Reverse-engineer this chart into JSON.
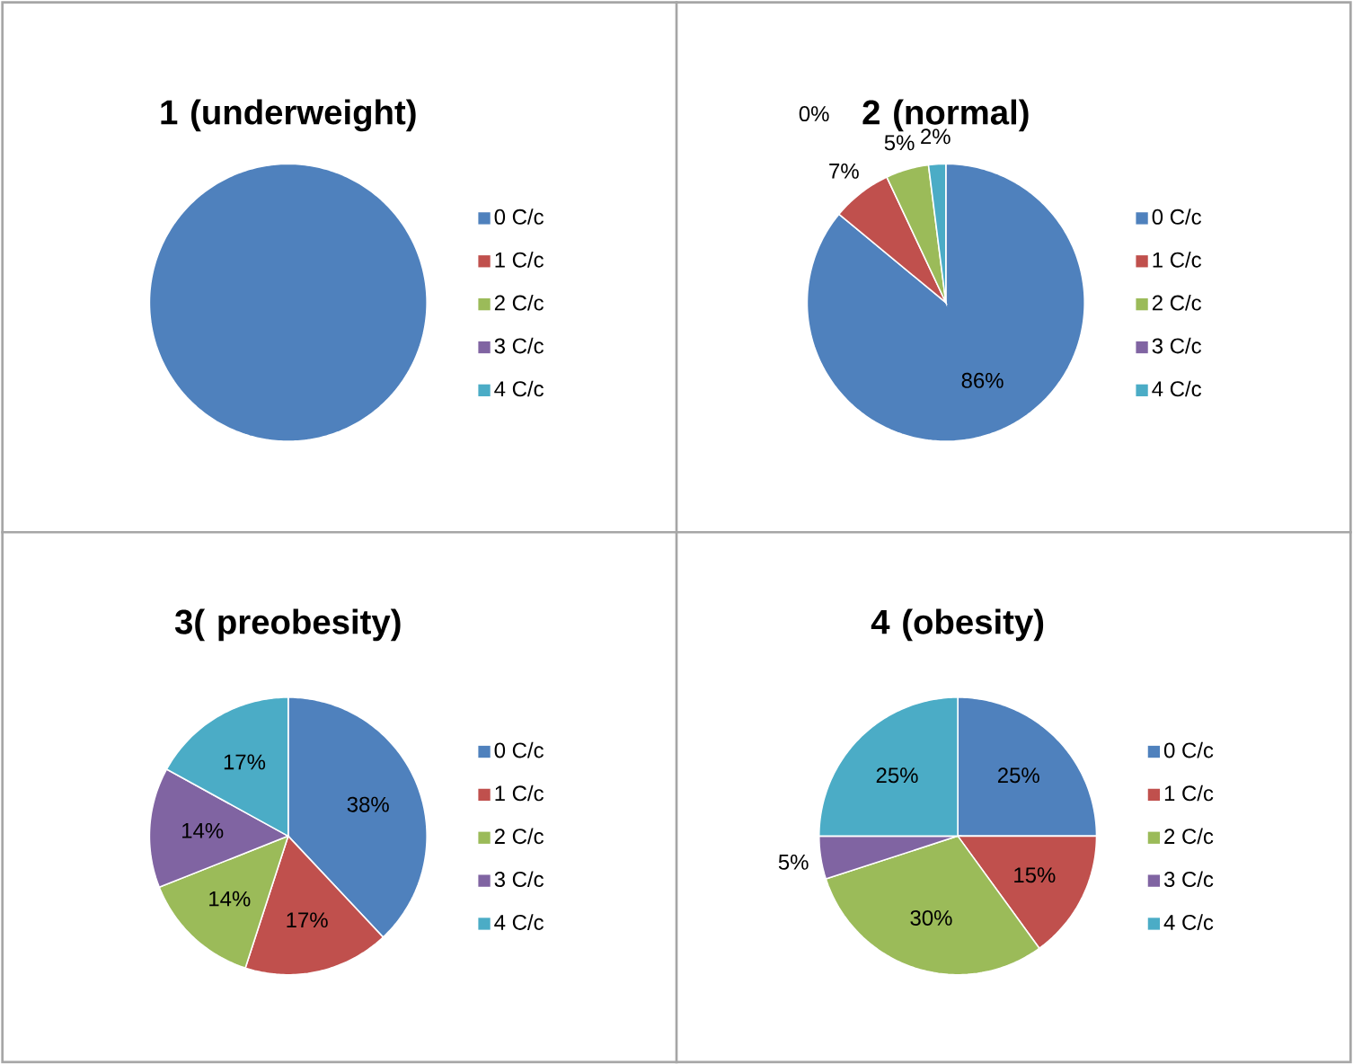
{
  "chart_data": [
    {
      "type": "pie",
      "title": "1 (underweight)",
      "categories": [
        "0 C/c",
        "1 C/c",
        "2 C/c",
        "3 C/c",
        "4 C/c"
      ],
      "values": [
        100,
        0,
        0,
        0,
        0
      ],
      "colors": [
        "#4f81bd",
        "#c0504d",
        "#9bbb59",
        "#8064a2",
        "#4bacc6"
      ],
      "legend": "right"
    },
    {
      "type": "pie",
      "title": "2 (normal)",
      "categories": [
        "0 C/c",
        "1 C/c",
        "2 C/c",
        "3 C/c",
        "4 C/c"
      ],
      "values": [
        86,
        7,
        5,
        0,
        2
      ],
      "value_labels": [
        "86%",
        "7%",
        "5%",
        "0%",
        "2%"
      ],
      "colors": [
        "#4f81bd",
        "#c0504d",
        "#9bbb59",
        "#8064a2",
        "#4bacc6"
      ],
      "legend": "right"
    },
    {
      "type": "pie",
      "title": "3( preobesity)",
      "categories": [
        "0 C/c",
        "1 C/c",
        "2 C/c",
        "3 C/c",
        "4 C/c"
      ],
      "values": [
        38,
        17,
        14,
        14,
        17
      ],
      "value_labels": [
        "38%",
        "17%",
        "14%",
        "14%",
        "17%"
      ],
      "colors": [
        "#4f81bd",
        "#c0504d",
        "#9bbb59",
        "#8064a2",
        "#4bacc6"
      ],
      "legend": "right"
    },
    {
      "type": "pie",
      "title": "4 (obesity)",
      "categories": [
        "0 C/c",
        "1 C/c",
        "2 C/c",
        "3 C/c",
        "4 C/c"
      ],
      "values": [
        25,
        15,
        30,
        5,
        25
      ],
      "value_labels": [
        "25%",
        "15%",
        "30%",
        "5%",
        "25%"
      ],
      "colors": [
        "#4f81bd",
        "#c0504d",
        "#9bbb59",
        "#8064a2",
        "#4bacc6"
      ],
      "legend": "right"
    }
  ]
}
